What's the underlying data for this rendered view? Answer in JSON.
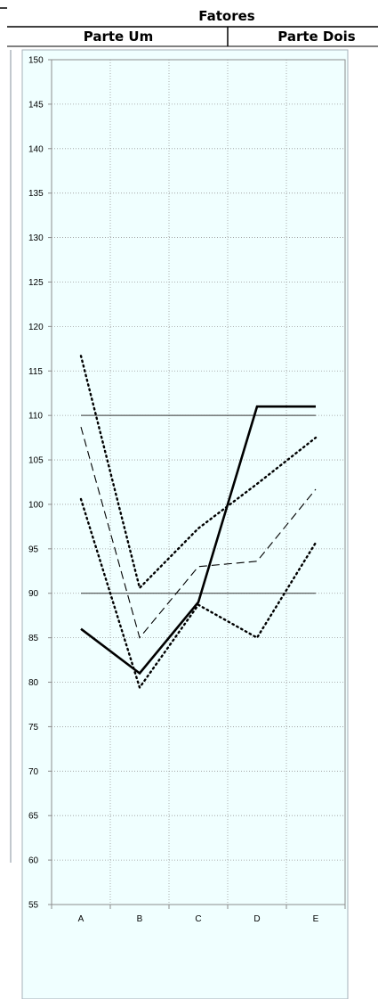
{
  "header": {
    "group_label": "Fatores",
    "part_one": "Parte Um",
    "part_two": "Parte Dois"
  },
  "chart_data": {
    "type": "line",
    "categories": [
      "A",
      "B",
      "C",
      "D",
      "E"
    ],
    "ylim": [
      55,
      150
    ],
    "y_ticks": [
      "55",
      "60",
      "65",
      "70",
      "75",
      "80",
      "85",
      "90",
      "95",
      "100",
      "105",
      "110",
      "115",
      "120",
      "125",
      "130",
      "135",
      "140",
      "145",
      "150"
    ],
    "grid": true,
    "background": "#f0ffff",
    "series": [
      {
        "style": "bold-solid",
        "values": [
          86,
          81,
          89,
          111,
          111
        ]
      },
      {
        "style": "dashed",
        "values": [
          108.7,
          85,
          93,
          93.6,
          101.7
        ]
      },
      {
        "style": "dotted-upper",
        "values": [
          116.7,
          90.6,
          97.3,
          102.3,
          107.5
        ]
      },
      {
        "style": "dotted-lower",
        "values": [
          100.6,
          79.4,
          88.7,
          85,
          95.7
        ]
      }
    ],
    "reference_lines": [
      110,
      90
    ]
  }
}
